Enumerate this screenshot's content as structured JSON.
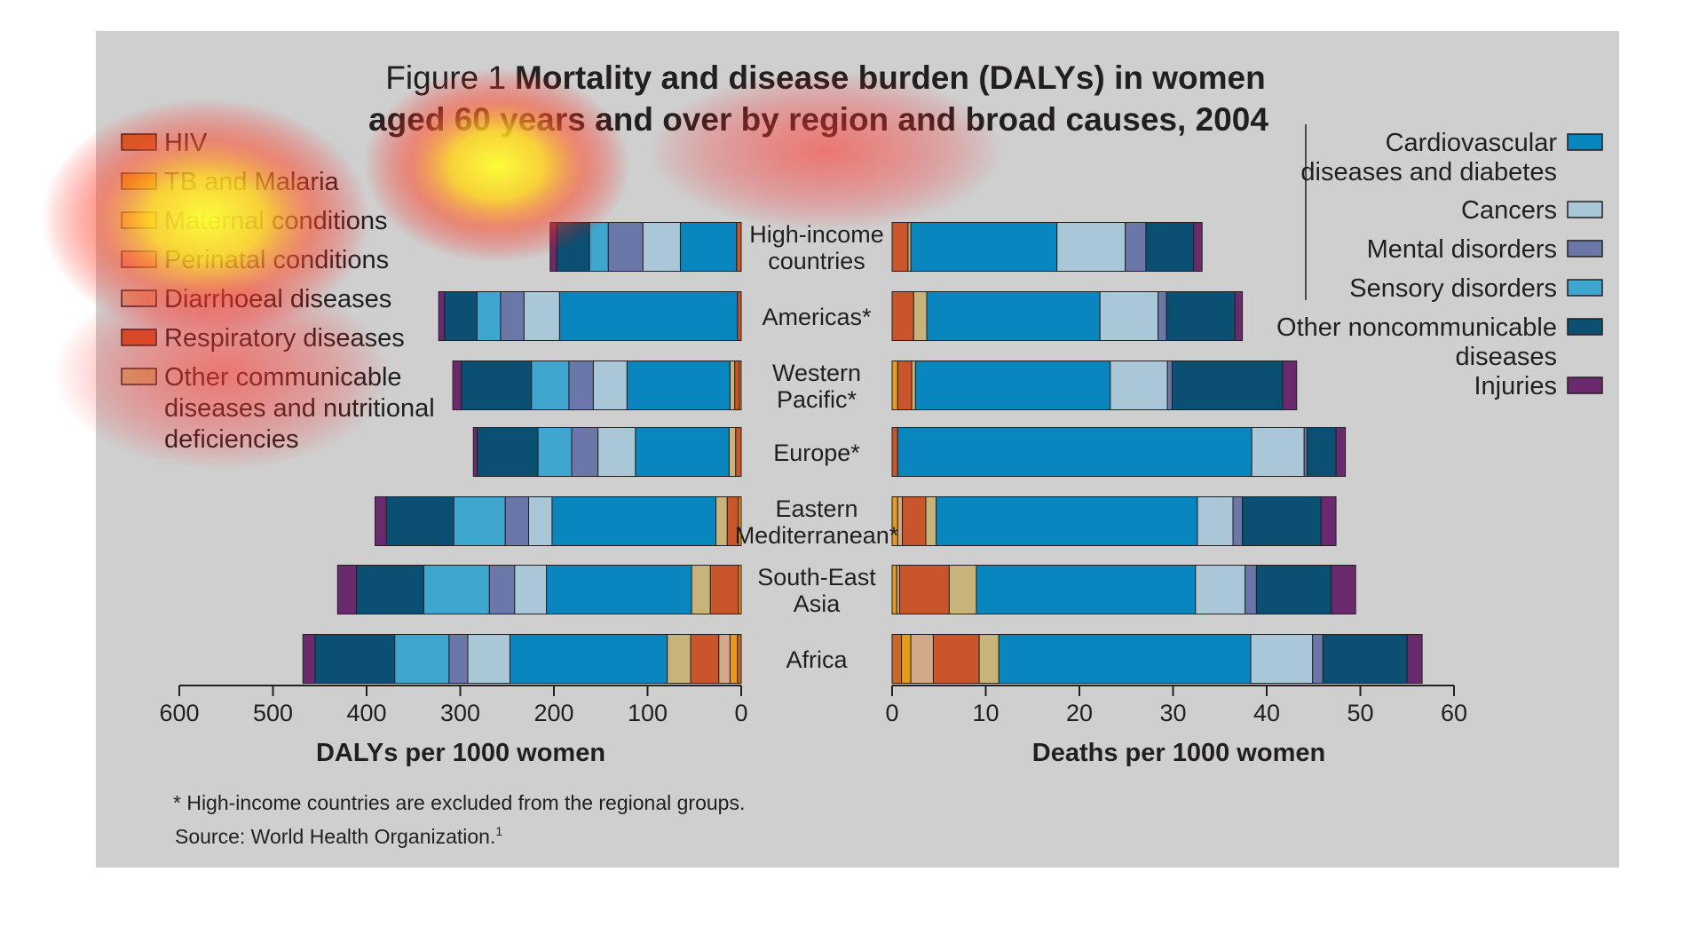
{
  "figure": {
    "title_prefix": "Figure 1",
    "title_line1": "Mortality and disease burden (DALYs) in women",
    "title_line2": "aged 60 years and over by region and broad causes, 2004",
    "footnote": "* High-income countries are excluded from the regional groups.",
    "source": "Source: World Health Organization.",
    "source_sup": "1",
    "background": "#cfcfcf"
  },
  "legend_left": [
    {
      "key": "hiv",
      "lines": [
        "HIV"
      ],
      "color": "#c8692a"
    },
    {
      "key": "tb",
      "lines": [
        "TB and Malaria"
      ],
      "color": "#e49a1f"
    },
    {
      "key": "maternal",
      "lines": [
        "Maternal conditions"
      ],
      "color": "#f0b05a"
    },
    {
      "key": "perinatal",
      "lines": [
        "Perinatal conditions"
      ],
      "color": "#e08a8a"
    },
    {
      "key": "diarrhoeal",
      "lines": [
        "Diarrhoeal diseases"
      ],
      "color": "#d4a98a"
    },
    {
      "key": "respiratory",
      "lines": [
        "Respiratory diseases"
      ],
      "color": "#c9562a"
    },
    {
      "key": "othercomm",
      "lines": [
        "Other communicable",
        "diseases and nutritional",
        "deficiencies"
      ],
      "color": "#c8b47a"
    }
  ],
  "legend_right": [
    {
      "key": "cardio",
      "lines": [
        "Cardiovascular",
        "diseases and diabetes"
      ],
      "color": "#0a86bf"
    },
    {
      "key": "cancers",
      "lines": [
        "Cancers"
      ],
      "color": "#a9c7d6"
    },
    {
      "key": "mental",
      "lines": [
        "Mental disorders"
      ],
      "color": "#6a77a8"
    },
    {
      "key": "sensory",
      "lines": [
        "Sensory disorders"
      ],
      "color": "#3fa6cf"
    },
    {
      "key": "otherncd",
      "lines": [
        "Other noncommunicable",
        "diseases"
      ],
      "color": "#0b4f73"
    },
    {
      "key": "injuries",
      "lines": [
        "Injuries"
      ],
      "color": "#6a2b6e"
    }
  ],
  "heat_color": "#ffff33",
  "chart_data": [
    {
      "type": "bar",
      "orientation": "horizontal",
      "stacked": true,
      "direction": "right-to-left",
      "xlabel": "DALYs per 1000 women",
      "xlim": [
        0,
        600
      ],
      "xticks": [
        600,
        500,
        400,
        300,
        200,
        100,
        0
      ],
      "categories": [
        [
          "High-income",
          "countries"
        ],
        [
          "Americas*"
        ],
        [
          "Western",
          "Pacific*"
        ],
        [
          "Europe*"
        ],
        [
          "Eastern",
          "Mediterranean*"
        ],
        [
          "South-East",
          "Asia"
        ],
        [
          "Africa"
        ]
      ],
      "series": [
        {
          "name": "HIV",
          "values": [
            0,
            0,
            0,
            0,
            0,
            0,
            4
          ]
        },
        {
          "name": "TB and Malaria",
          "values": [
            0,
            0,
            2,
            0,
            3,
            3,
            8
          ]
        },
        {
          "name": "Maternal conditions",
          "values": [
            0,
            0,
            0,
            0,
            0,
            0,
            0
          ]
        },
        {
          "name": "Perinatal conditions",
          "values": [
            0,
            0,
            0,
            0,
            0,
            0,
            0
          ]
        },
        {
          "name": "Diarrhoeal diseases",
          "values": [
            0,
            0,
            0,
            0,
            0,
            0,
            12
          ]
        },
        {
          "name": "Respiratory diseases",
          "values": [
            5,
            4,
            5,
            6,
            12,
            30,
            30
          ]
        },
        {
          "name": "Other communicable diseases and nutritional deficiencies",
          "values": [
            0,
            0,
            5,
            7,
            12,
            20,
            25
          ]
        },
        {
          "name": "Cardiovascular diseases and diabetes",
          "values": [
            60,
            190,
            110,
            100,
            175,
            155,
            168
          ]
        },
        {
          "name": "Cancers",
          "values": [
            40,
            38,
            36,
            40,
            25,
            34,
            45
          ]
        },
        {
          "name": "Mental disorders",
          "values": [
            37,
            25,
            26,
            28,
            25,
            27,
            20
          ]
        },
        {
          "name": "Sensory disorders",
          "values": [
            20,
            25,
            40,
            36,
            55,
            70,
            58
          ]
        },
        {
          "name": "Other noncommunicable diseases",
          "values": [
            35,
            35,
            75,
            65,
            72,
            72,
            85
          ]
        },
        {
          "name": "Injuries",
          "values": [
            7,
            6,
            9,
            4,
            12,
            20,
            13
          ]
        }
      ]
    },
    {
      "type": "bar",
      "orientation": "horizontal",
      "stacked": true,
      "direction": "left-to-right",
      "xlabel": "Deaths per 1000 women",
      "xlim": [
        0,
        60
      ],
      "xticks": [
        0,
        10,
        20,
        30,
        40,
        50,
        60
      ],
      "categories": [
        [
          "High-income",
          "countries"
        ],
        [
          "Americas*"
        ],
        [
          "Western",
          "Pacific*"
        ],
        [
          "Europe*"
        ],
        [
          "Eastern",
          "Mediterranean*"
        ],
        [
          "South-East",
          "Asia"
        ],
        [
          "Africa"
        ]
      ],
      "series": [
        {
          "name": "HIV",
          "values": [
            0,
            0,
            0,
            0,
            0,
            0,
            1
          ]
        },
        {
          "name": "TB and Malaria",
          "values": [
            0,
            0,
            0.6,
            0,
            0.6,
            0.5,
            1
          ]
        },
        {
          "name": "Maternal conditions",
          "values": [
            0,
            0,
            0,
            0,
            0,
            0,
            0
          ]
        },
        {
          "name": "Perinatal conditions",
          "values": [
            0,
            0,
            0,
            0,
            0,
            0,
            0
          ]
        },
        {
          "name": "Diarrhoeal diseases",
          "values": [
            0,
            0,
            0,
            0,
            0.5,
            0.3,
            2.4
          ]
        },
        {
          "name": "Respiratory diseases",
          "values": [
            1.7,
            2.3,
            1.5,
            0.6,
            2.5,
            5.3,
            4.9
          ]
        },
        {
          "name": "Other communicable diseases and nutritional deficiencies",
          "values": [
            0.3,
            1.4,
            0.4,
            0,
            1.1,
            2.9,
            2.1
          ]
        },
        {
          "name": "Cardiovascular diseases and diabetes",
          "values": [
            15.6,
            18.5,
            20.8,
            37.8,
            27.9,
            23.4,
            26.9
          ]
        },
        {
          "name": "Cancers",
          "values": [
            7.3,
            6.2,
            6.1,
            5.6,
            3.8,
            5.3,
            6.6
          ]
        },
        {
          "name": "Mental disorders",
          "values": [
            2.2,
            0.9,
            0.5,
            0.3,
            1.0,
            1.2,
            1.1
          ]
        },
        {
          "name": "Sensory disorders",
          "values": [
            0,
            0,
            0,
            0,
            0,
            0,
            0
          ]
        },
        {
          "name": "Other noncommunicable diseases",
          "values": [
            5.1,
            7.3,
            11.8,
            3.1,
            8.4,
            8.0,
            9.0
          ]
        },
        {
          "name": "Injuries",
          "values": [
            0.9,
            0.8,
            1.5,
            1.0,
            1.6,
            2.6,
            1.6
          ]
        }
      ]
    }
  ]
}
